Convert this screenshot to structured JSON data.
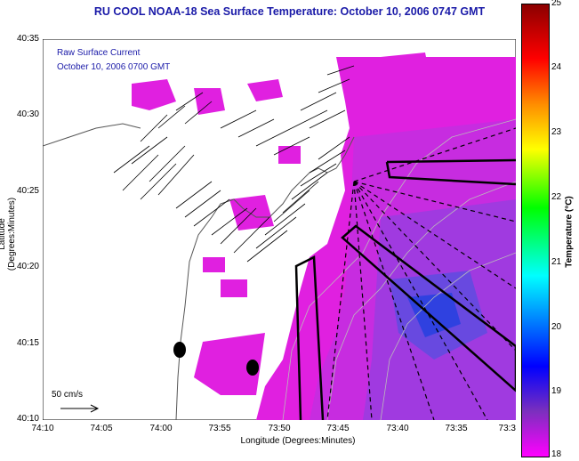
{
  "title": "RU COOL  NOAA-18  Sea Surface Temperature:  October 10, 2006 0747 GMT",
  "overlay": {
    "line1": "Raw Surface Current",
    "line2": "October 10, 2006  0700 GMT"
  },
  "axes": {
    "xlabel": "Longitude (Degrees:Minutes)",
    "ylabel": "Latitude (Degrees:Minutes)",
    "xticks": [
      "74:10",
      "74:05",
      "74:00",
      "73:55",
      "73:50",
      "73:45",
      "73:40",
      "73:35",
      "73:3"
    ],
    "yticks": [
      "40:35",
      "40:30",
      "40:25",
      "40:20",
      "40:15",
      "40:10"
    ]
  },
  "colorbar": {
    "label": "Temperature (°C)",
    "ticks": [
      "25",
      "24",
      "23",
      "22",
      "21",
      "20",
      "19",
      "18"
    ],
    "range": [
      18,
      25
    ],
    "colors": [
      "#8b0000",
      "#ff0000",
      "#ff8c00",
      "#ffff00",
      "#00ff00",
      "#00ffff",
      "#0000ff",
      "#7b2fbe",
      "#ff00ff"
    ]
  },
  "scale": {
    "label": "50 cm/s"
  }
}
